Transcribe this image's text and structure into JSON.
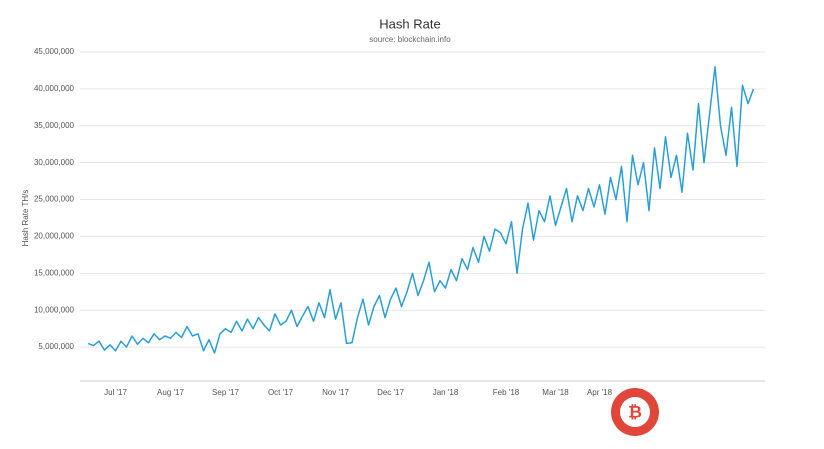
{
  "chart_data": {
    "type": "line",
    "title": "Hash Rate",
    "subtitle": "source: blockchain.info",
    "y_label": "Hash Rate TH/s",
    "categories": [
      null,
      null,
      null,
      null,
      null,
      "Jul '17",
      null,
      null,
      null,
      null,
      null,
      null,
      null,
      null,
      null,
      "Aug '17",
      null,
      null,
      null,
      null,
      null,
      null,
      null,
      null,
      null,
      "Sep '17",
      null,
      null,
      null,
      null,
      null,
      null,
      null,
      null,
      null,
      "Oct '17",
      null,
      null,
      null,
      null,
      null,
      null,
      null,
      null,
      null,
      "Nov '17",
      null,
      null,
      null,
      null,
      null,
      null,
      null,
      null,
      null,
      "Dec '17",
      null,
      null,
      null,
      null,
      null,
      null,
      null,
      null,
      null,
      "Jan '18",
      null,
      null,
      null,
      null,
      null,
      null,
      null,
      null,
      null,
      null,
      "Feb '18",
      null,
      null,
      null,
      null,
      null,
      null,
      null,
      null,
      "Mar '18",
      null,
      null,
      null,
      null,
      null,
      null,
      null,
      "Apr '18",
      null,
      null,
      null,
      null,
      null,
      null,
      null,
      null,
      null,
      null,
      null,
      null,
      null,
      null,
      null,
      null,
      null,
      null,
      null,
      null,
      null,
      null,
      null,
      null,
      null,
      null,
      null,
      null
    ],
    "series": [
      {
        "name": "Hash Rate",
        "color": "#2a9fd6",
        "values": [
          5500000,
          5200000,
          5800000,
          4600000,
          5300000,
          4500000,
          5800000,
          5000000,
          6500000,
          5400000,
          6200000,
          5600000,
          6800000,
          6000000,
          6500000,
          6200000,
          7000000,
          6300000,
          7800000,
          6500000,
          6800000,
          4500000,
          6000000,
          4200000,
          6800000,
          7500000,
          7000000,
          8500000,
          7200000,
          8800000,
          7500000,
          9000000,
          8000000,
          7200000,
          9500000,
          8000000,
          8500000,
          10000000,
          7800000,
          9200000,
          10500000,
          8500000,
          11000000,
          9000000,
          12800000,
          8800000,
          11000000,
          5500000,
          5600000,
          9000000,
          11500000,
          8000000,
          10500000,
          12000000,
          9000000,
          11500000,
          13000000,
          10500000,
          12500000,
          15000000,
          12000000,
          14000000,
          16500000,
          12500000,
          14000000,
          13000000,
          15500000,
          14000000,
          17000000,
          15500000,
          18500000,
          16500000,
          20000000,
          18000000,
          21000000,
          20500000,
          19000000,
          22000000,
          15000000,
          21000000,
          24500000,
          19500000,
          23500000,
          22000000,
          25500000,
          21500000,
          24000000,
          26500000,
          22000000,
          25500000,
          23500000,
          26500000,
          24000000,
          27000000,
          23000000,
          28000000,
          25000000,
          29500000,
          22000000,
          31000000,
          27000000,
          30000000,
          23500000,
          32000000,
          26500000,
          33500000,
          28000000,
          31000000,
          26000000,
          34000000,
          29000000,
          38000000,
          30000000,
          36500000,
          43000000,
          35000000,
          31000000,
          37500000,
          29500000,
          40500000,
          38000000,
          40000000
        ]
      }
    ],
    "ylim": [
      0,
      45000000
    ],
    "yticks": [
      {
        "value": 5000000,
        "label": "5,000,000"
      },
      {
        "value": 10000000,
        "label": "10,000,000"
      },
      {
        "value": 15000000,
        "label": "15,000,000"
      },
      {
        "value": 20000000,
        "label": "20,000,000"
      },
      {
        "value": 25000000,
        "label": "25,000,000"
      },
      {
        "value": 30000000,
        "label": "30,000,000"
      },
      {
        "value": 35000000,
        "label": "35,000,000"
      },
      {
        "value": 40000000,
        "label": "40,000,000"
      },
      {
        "value": 45000000,
        "label": "45,000,000"
      }
    ],
    "grid": true
  }
}
